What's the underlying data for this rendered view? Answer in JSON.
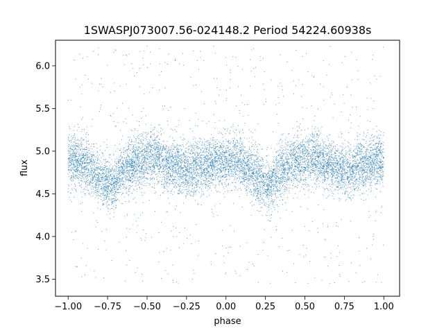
{
  "chart_data": {
    "type": "scatter",
    "title": "1SWASPJ073007.56-024148.2 Period 54224.60938s",
    "xlabel": "phase",
    "ylabel": "flux",
    "xlim": [
      -1.08,
      1.1
    ],
    "ylim": [
      3.3,
      6.3
    ],
    "x_ticks": [
      {
        "value": -1.0,
        "label": "−1.00"
      },
      {
        "value": -0.75,
        "label": "−0.75"
      },
      {
        "value": -0.5,
        "label": "−0.50"
      },
      {
        "value": -0.25,
        "label": "−0.25"
      },
      {
        "value": 0.0,
        "label": "0.00"
      },
      {
        "value": 0.25,
        "label": "0.25"
      },
      {
        "value": 0.5,
        "label": "0.50"
      },
      {
        "value": 0.75,
        "label": "0.75"
      },
      {
        "value": 1.0,
        "label": "1.00"
      }
    ],
    "y_ticks": [
      {
        "value": 3.5,
        "label": "3.5"
      },
      {
        "value": 4.0,
        "label": "4.0"
      },
      {
        "value": 4.5,
        "label": "4.5"
      },
      {
        "value": 5.0,
        "label": "5.0"
      },
      {
        "value": 5.5,
        "label": "5.5"
      },
      {
        "value": 6.0,
        "label": "6.0"
      }
    ],
    "grid": false,
    "point_color": "#1f77b4",
    "series": [
      {
        "name": "",
        "x_range": [
          -1.0,
          1.0
        ],
        "trend_phase": [
          -1.0,
          -0.9,
          -0.8,
          -0.72,
          -0.65,
          -0.55,
          -0.45,
          -0.35,
          -0.25,
          -0.15,
          -0.05,
          0.05,
          0.15,
          0.22,
          0.28,
          0.35,
          0.45,
          0.55,
          0.65,
          0.75,
          0.85,
          1.0
        ],
        "trend_flux": [
          4.9,
          4.85,
          4.7,
          4.6,
          4.78,
          4.9,
          4.92,
          4.83,
          4.77,
          4.82,
          4.88,
          4.9,
          4.78,
          4.65,
          4.6,
          4.78,
          4.9,
          4.92,
          4.83,
          4.77,
          4.82,
          4.9
        ],
        "core_spread": 0.15,
        "outlier_flux_range": [
          3.45,
          6.25
        ]
      }
    ]
  }
}
